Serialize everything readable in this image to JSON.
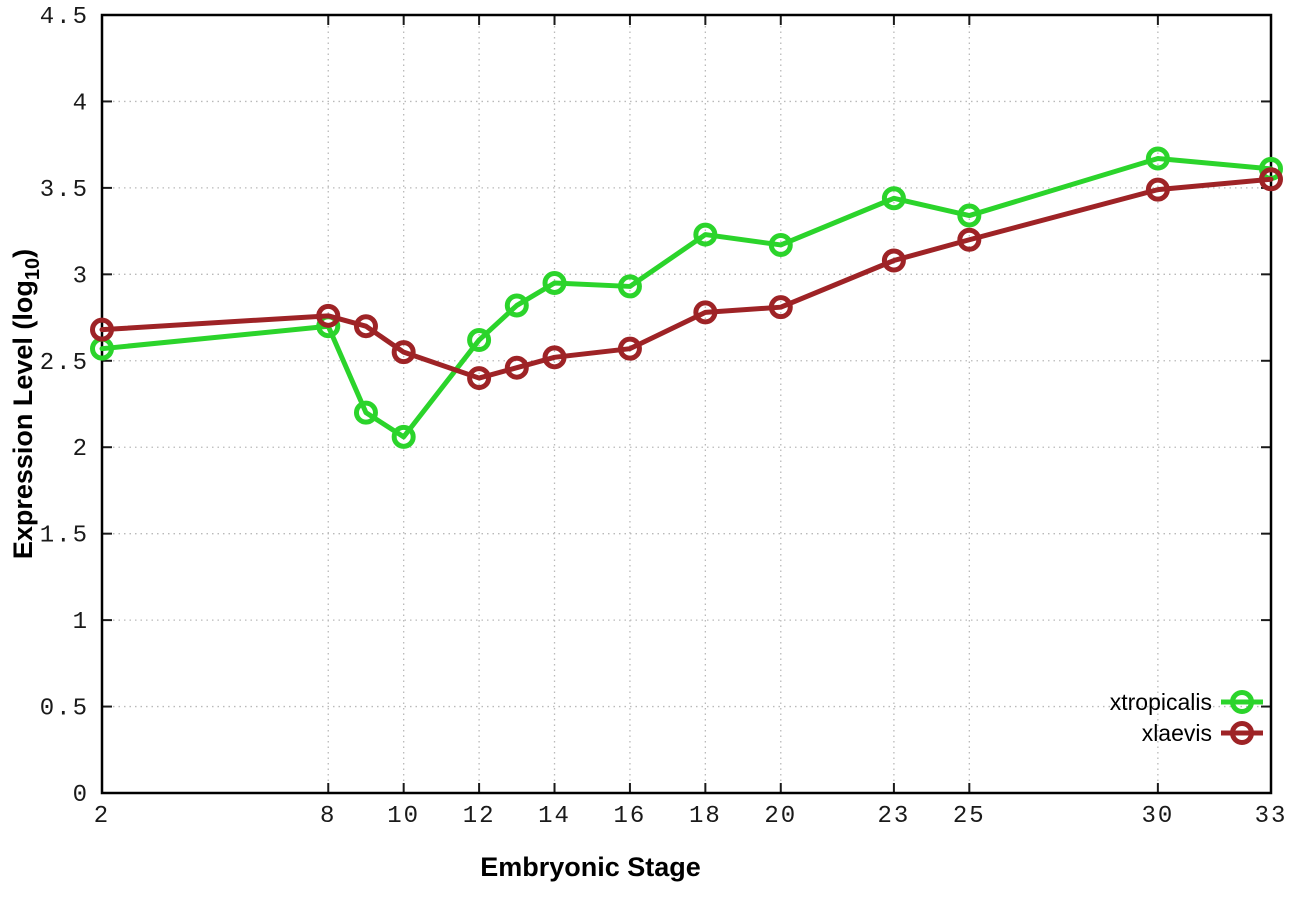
{
  "chart_data": {
    "type": "line",
    "title": "",
    "xlabel": "Embryonic Stage",
    "ylabel": "Expression Level (log10)",
    "ylabel_parts": {
      "pre": "Expression Level (log",
      "sub": "10",
      "post": ")"
    },
    "xlim": [
      2,
      33
    ],
    "ylim": [
      0,
      4.5
    ],
    "grid": true,
    "legend_position": "bottom-right",
    "x_ticks": [
      2,
      8,
      10,
      12,
      14,
      16,
      18,
      20,
      23,
      25,
      30,
      33
    ],
    "x_tick_labels": [
      "2",
      "8",
      "10",
      "12",
      "14",
      "16",
      "18",
      "20",
      "23",
      "25",
      "30",
      "33"
    ],
    "y_ticks": [
      0,
      0.5,
      1,
      1.5,
      2,
      2.5,
      3,
      3.5,
      4,
      4.5
    ],
    "y_tick_labels": [
      "0",
      "0.5",
      "1",
      "1.5",
      "2",
      "2.5",
      "3",
      "3.5",
      "4",
      "4.5"
    ],
    "x": [
      2,
      8,
      9,
      10,
      12,
      13,
      14,
      16,
      18,
      20,
      23,
      25,
      30,
      33
    ],
    "series": [
      {
        "name": "xtropicalis",
        "color": "#2bd42b",
        "values": [
          2.57,
          2.7,
          2.2,
          2.06,
          2.62,
          2.82,
          2.95,
          2.93,
          3.23,
          3.17,
          3.44,
          3.34,
          3.67,
          3.61
        ]
      },
      {
        "name": "xlaevis",
        "color": "#9e2326",
        "values": [
          2.68,
          2.76,
          2.7,
          2.55,
          2.4,
          2.46,
          2.52,
          2.57,
          2.78,
          2.81,
          3.08,
          3.2,
          3.49,
          3.55
        ]
      }
    ],
    "colors": {
      "grid": "#b9b9b9",
      "border": "#000000",
      "tick": "#1a1a1a"
    }
  }
}
